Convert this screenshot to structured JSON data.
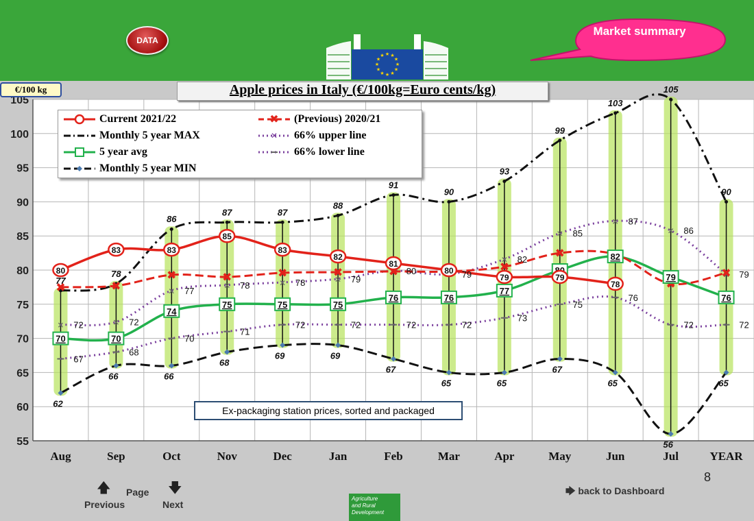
{
  "header": {
    "data_button": "DATA",
    "market_summary": "Market summary"
  },
  "colors": {
    "topbar": "#3aa63a",
    "current": "#e2221a",
    "previous": "#e2221a",
    "max": "#111111",
    "min": "#111111",
    "avg": "#22b14c",
    "upper": "#7a3f9d",
    "lower": "#7a3f9d",
    "band": "#b7e35b"
  },
  "icons": {
    "logo": "ec-logo",
    "bubble": "speech-bubble-icon",
    "prev": "arrow-up-icon",
    "next": "arrow-down-icon",
    "back": "arrow-right-icon"
  },
  "chart_data": {
    "type": "line",
    "title": "Apple prices in Italy (€/100kg=Euro cents/kg)",
    "ylabel": "€/100 kg",
    "ylim": [
      55,
      105
    ],
    "yticks": [
      55,
      60,
      65,
      70,
      75,
      80,
      85,
      90,
      95,
      100,
      105
    ],
    "grid": true,
    "legend_position": "top-left",
    "categories": [
      "Aug",
      "Sep",
      "Oct",
      "Nov",
      "Dec",
      "Jan",
      "Feb",
      "Mar",
      "Apr",
      "May",
      "Jun",
      "Jul",
      "YEAR"
    ],
    "series": [
      {
        "key": "current",
        "name": "Current 2021/22",
        "values": [
          80,
          83,
          83,
          85,
          83,
          82,
          81,
          80,
          79,
          79,
          78,
          null,
          null
        ],
        "labels": [
          "80",
          "83",
          "83",
          "85",
          "83",
          "82",
          "81",
          "80",
          "79",
          "79",
          "78",
          "",
          ""
        ]
      },
      {
        "key": "previous",
        "name": "(Previous) 2020/21",
        "values": [
          77.5,
          77.7,
          79.3,
          79.0,
          79.6,
          79.7,
          79.8,
          79.8,
          80.5,
          82.5,
          82.3,
          78.0,
          79.6
        ]
      },
      {
        "key": "max",
        "name": "Monthly 5 year MAX",
        "values": [
          77,
          78,
          86,
          87,
          87,
          88,
          91,
          90,
          93,
          99,
          103,
          105,
          90
        ],
        "labels": [
          "77",
          "78",
          "86",
          "87",
          "87",
          "88",
          "91",
          "90",
          "93",
          "99",
          "103",
          "105",
          "90"
        ]
      },
      {
        "key": "upper",
        "name": "66% upper line",
        "values": [
          72,
          72.4,
          77,
          77.8,
          78.2,
          78.7,
          79.9,
          79.4,
          81.6,
          85.4,
          87.2,
          85.8,
          79.4
        ],
        "labels": [
          "72",
          "72",
          "77",
          "78",
          "78",
          "79",
          "80",
          "79",
          "82",
          "85",
          "87",
          "86",
          "79"
        ]
      },
      {
        "key": "avg",
        "name": "5 year avg",
        "values": [
          70,
          70,
          74,
          75,
          75,
          75,
          76,
          76,
          77,
          80,
          82,
          79,
          76
        ],
        "labels": [
          "70",
          "70",
          "74",
          "75",
          "75",
          "75",
          "76",
          "76",
          "77",
          "80",
          "82",
          "79",
          "76"
        ]
      },
      {
        "key": "lower",
        "name": "66% lower line",
        "values": [
          67,
          68,
          70,
          71,
          72,
          72,
          72,
          72,
          73,
          75,
          76,
          72,
          72
        ],
        "labels": [
          "67",
          "68",
          "70",
          "71",
          "72",
          "72",
          "72",
          "72",
          "73",
          "75",
          "76",
          "72",
          "72"
        ]
      },
      {
        "key": "min",
        "name": "Monthly 5 year MIN",
        "values": [
          62,
          66,
          66,
          68,
          69,
          69,
          67,
          65,
          65,
          67,
          65,
          56,
          65
        ],
        "labels": [
          "62",
          "66",
          "66",
          "68",
          "69",
          "69",
          "67",
          "65",
          "65",
          "67",
          "65",
          "56",
          "65"
        ]
      }
    ],
    "annotation": "Ex-packaging station prices, sorted and packaged"
  },
  "nav": {
    "page_label": "Page",
    "previous": "Previous",
    "next": "Next",
    "back": "back to Dashboard",
    "page_number": "8"
  },
  "footer_logo": {
    "line1": "Agriculture",
    "line2": "and Rural",
    "line3": "Development"
  }
}
